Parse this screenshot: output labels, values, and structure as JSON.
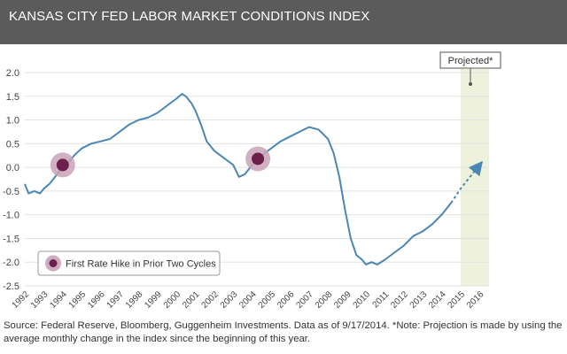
{
  "header": {
    "title": "KANSAS CITY FED LABOR MARKET CONDITIONS INDEX"
  },
  "colors": {
    "header_bg": "#5b5b5b",
    "line": "#4b87b5",
    "projection_shade": "#eef2dc",
    "marker": "#6b1f4b",
    "marker_halo": "#c9a3b6",
    "grid": "#e2e2e2"
  },
  "chart_data": {
    "type": "line",
    "title": "KANSAS CITY FED LABOR MARKET CONDITIONS INDEX",
    "xlabel": "",
    "ylabel": "",
    "xlim": [
      1992,
      2016.5
    ],
    "ylim": [
      -2.5,
      2.0
    ],
    "grid": true,
    "y_ticks": [
      "2.0",
      "1.5",
      "1.0",
      "0.5",
      "0.0",
      "-0.5",
      "-1.0",
      "-1.5",
      "-2.0",
      "-2.5"
    ],
    "x_ticks": [
      "1992",
      "1993",
      "1994",
      "1995",
      "1996",
      "1997",
      "1998",
      "1999",
      "2000",
      "2001",
      "2002",
      "2003",
      "2004",
      "2005",
      "2006",
      "2007",
      "2008",
      "2009",
      "2010",
      "2011",
      "2012",
      "2013",
      "2014",
      "2015",
      "2016"
    ],
    "series": [
      {
        "name": "Labor Market Conditions Index",
        "style": "solid",
        "points": [
          [
            1992.0,
            -0.35
          ],
          [
            1992.2,
            -0.55
          ],
          [
            1992.5,
            -0.5
          ],
          [
            1992.8,
            -0.55
          ],
          [
            1993.0,
            -0.45
          ],
          [
            1993.3,
            -0.35
          ],
          [
            1993.6,
            -0.2
          ],
          [
            1994.0,
            0.0
          ],
          [
            1994.3,
            0.1
          ],
          [
            1994.6,
            0.25
          ],
          [
            1995.0,
            0.4
          ],
          [
            1995.5,
            0.5
          ],
          [
            1996.0,
            0.55
          ],
          [
            1996.5,
            0.6
          ],
          [
            1997.0,
            0.75
          ],
          [
            1997.5,
            0.9
          ],
          [
            1998.0,
            1.0
          ],
          [
            1998.5,
            1.05
          ],
          [
            1999.0,
            1.15
          ],
          [
            1999.5,
            1.3
          ],
          [
            2000.0,
            1.45
          ],
          [
            2000.3,
            1.55
          ],
          [
            2000.5,
            1.5
          ],
          [
            2000.8,
            1.35
          ],
          [
            2001.0,
            1.2
          ],
          [
            2001.3,
            0.9
          ],
          [
            2001.6,
            0.55
          ],
          [
            2002.0,
            0.35
          ],
          [
            2002.5,
            0.2
          ],
          [
            2003.0,
            0.05
          ],
          [
            2003.3,
            -0.2
          ],
          [
            2003.6,
            -0.15
          ],
          [
            2004.0,
            0.05
          ],
          [
            2004.5,
            0.25
          ],
          [
            2005.0,
            0.4
          ],
          [
            2005.5,
            0.55
          ],
          [
            2006.0,
            0.65
          ],
          [
            2006.5,
            0.75
          ],
          [
            2007.0,
            0.85
          ],
          [
            2007.5,
            0.8
          ],
          [
            2008.0,
            0.6
          ],
          [
            2008.3,
            0.3
          ],
          [
            2008.6,
            -0.2
          ],
          [
            2008.9,
            -0.9
          ],
          [
            2009.2,
            -1.5
          ],
          [
            2009.5,
            -1.85
          ],
          [
            2009.8,
            -1.95
          ],
          [
            2010.0,
            -2.05
          ],
          [
            2010.3,
            -2.0
          ],
          [
            2010.6,
            -2.05
          ],
          [
            2011.0,
            -1.95
          ],
          [
            2011.5,
            -1.8
          ],
          [
            2012.0,
            -1.65
          ],
          [
            2012.5,
            -1.45
          ],
          [
            2013.0,
            -1.35
          ],
          [
            2013.5,
            -1.2
          ],
          [
            2014.0,
            -1.0
          ],
          [
            2014.5,
            -0.75
          ]
        ]
      },
      {
        "name": "Projection",
        "style": "dashed",
        "points": [
          [
            2014.5,
            -0.75
          ],
          [
            2015.0,
            -0.45
          ],
          [
            2015.5,
            -0.2
          ],
          [
            2016.0,
            0.05
          ]
        ]
      }
    ],
    "projection_region": {
      "x_start": 2015.0,
      "x_end": 2016.5,
      "label": "Projected*"
    },
    "markers": [
      {
        "x": 1994.0,
        "y": 0.05
      },
      {
        "x": 2004.3,
        "y": 0.18
      }
    ],
    "legend": {
      "label": "First Rate Hike in Prior Two Cycles",
      "position": "bottom-left"
    }
  },
  "footer": {
    "source": "Source: Federal Reserve, Bloomberg, Guggenheim Investments. Data as of 9/17/2014. *Note: Projection is made by using the average monthly change in the index since the beginning of this year."
  }
}
